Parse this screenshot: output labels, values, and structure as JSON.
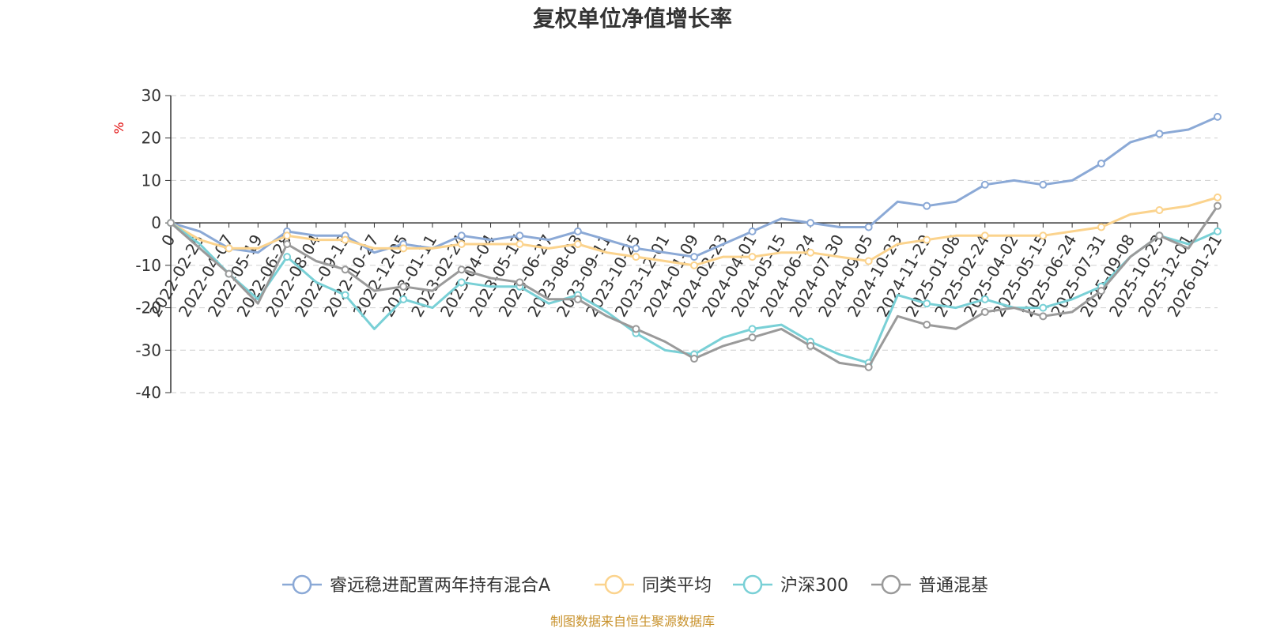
{
  "chart_data": {
    "type": "line",
    "title": "复权单位净值增长率",
    "ylabel": "%",
    "xlabel": "",
    "ylim": [
      -40,
      30
    ],
    "yticks": [
      30,
      20,
      10,
      0,
      -10,
      -20,
      -30,
      -40
    ],
    "grid": true,
    "legend_position": "bottom-center",
    "x_tick_labels": [
      "0",
      "2022-02-25",
      "2022-04-07",
      "2022-05-19",
      "2022-06-28",
      "2022-08-04",
      "2022-09-13",
      "2022-10-27",
      "2022-12-05",
      "2023-01-11",
      "2023-02-24",
      "2023-04-04",
      "2023-05-17",
      "2023-06-27",
      "2023-08-03",
      "2023-09-11",
      "2023-10-25",
      "2023-12-01",
      "2024-01-09",
      "2024-02-23",
      "2024-04-01",
      "2024-05-15",
      "2024-06-24",
      "2024-07-30",
      "2024-09-05",
      "2024-10-23",
      "2024-11-29",
      "2025-01-08",
      "2025-02-24",
      "2025-04-02",
      "2025-05-15",
      "2025-06-24",
      "2025-07-31",
      "2025-09-08",
      "2025-10-23",
      "2025-12-01",
      "2026-01-21"
    ],
    "series": [
      {
        "name": "睿远稳进配置两年持有混合A",
        "color": "#8ba9d6",
        "values": [
          0,
          -2,
          -6,
          -7,
          -2,
          -3,
          -3,
          -7,
          -5,
          -6,
          -3,
          -4,
          -3,
          -4,
          -2,
          -4,
          -6,
          -7,
          -8,
          -5,
          -2,
          1,
          0,
          -1,
          -1,
          5,
          4,
          5,
          9,
          10,
          9,
          10,
          14,
          19,
          21,
          22,
          25
        ]
      },
      {
        "name": "同类平均",
        "color": "#fbd38d",
        "values": [
          0,
          -4,
          -6,
          -6,
          -3,
          -4,
          -4,
          -6,
          -6,
          -6,
          -5,
          -5,
          -5,
          -6,
          -5,
          -7,
          -8,
          -9,
          -10,
          -8,
          -8,
          -7,
          -7,
          -8,
          -9,
          -5,
          -4,
          -3,
          -3,
          -3,
          -3,
          -2,
          -1,
          2,
          3,
          4,
          6
        ]
      },
      {
        "name": "沪深300",
        "color": "#79d0d6",
        "values": [
          0,
          -5,
          -12,
          -18,
          -8,
          -14,
          -17,
          -25,
          -18,
          -20,
          -14,
          -15,
          -15,
          -19,
          -17,
          -21,
          -26,
          -30,
          -31,
          -27,
          -25,
          -24,
          -28,
          -31,
          -33,
          -17,
          -19,
          -20,
          -18,
          -20,
          -20,
          -18,
          -15,
          -8,
          -3,
          -5,
          -2
        ]
      },
      {
        "name": "普通混基",
        "color": "#9a9a9a",
        "values": [
          0,
          -6,
          -12,
          -19,
          -5,
          -9,
          -11,
          -16,
          -15,
          -16,
          -11,
          -13,
          -14,
          -18,
          -18,
          -22,
          -25,
          -28,
          -32,
          -29,
          -27,
          -25,
          -29,
          -33,
          -34,
          -22,
          -24,
          -25,
          -21,
          -20,
          -22,
          -21,
          -16,
          -8,
          -3,
          -6,
          4
        ]
      }
    ]
  },
  "footer": {
    "source": "制图数据来自恒生聚源数据库"
  }
}
